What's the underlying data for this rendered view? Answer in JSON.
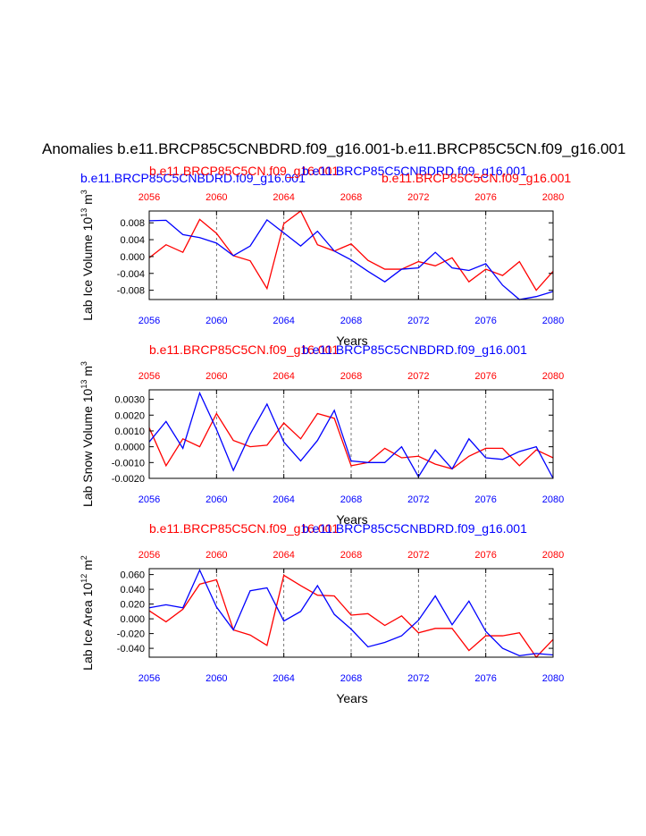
{
  "figure": {
    "main_title": "Anomalies b.e11.BRCP85C5CNBDRD.f09_g16.001-b.e11.BRCP85C5CN.f09_g16.001",
    "colors": {
      "red": "#ff0000",
      "blue": "#0000ff",
      "axis": "#000000",
      "grid": "#555555"
    }
  },
  "chart_data": [
    {
      "type": "line",
      "ylabel": "Lab Ice Volume 10",
      "ylabel_exp": "13",
      "ylabel_unit": "m",
      "ylabel_unit_exp": "3",
      "xlabel": "Years",
      "xlim": [
        2056,
        2080
      ],
      "ylim": [
        -0.0102,
        0.0108
      ],
      "yticks": [
        -0.008,
        -0.004,
        0.0,
        0.004,
        0.008
      ],
      "ytick_labels": [
        "-0.008",
        "-0.004",
        "0.000",
        "0.004",
        "0.008"
      ],
      "xticks": [
        2056,
        2060,
        2064,
        2068,
        2072,
        2076,
        2080
      ],
      "xtick_labels": [
        "2056",
        "2060",
        "2064",
        "2068",
        "2072",
        "2076",
        "2080"
      ],
      "top_labels": [
        {
          "text": "b.e11.BRCP85C5CNBDRD.f09_g16.001",
          "color": "blue",
          "slot": "left-low"
        },
        {
          "text": "b.e11.BRCP85C5CN.f09_g16.001",
          "color": "red",
          "slot": "center-left"
        },
        {
          "text": "b.e11.BRCP85C5CNBDRD.f09_g16.001",
          "color": "blue",
          "slot": "center-right"
        },
        {
          "text": "b.e11.BRCP85C5CN.f09_g16.001",
          "color": "red",
          "slot": "right-low"
        }
      ],
      "series": [
        {
          "name": "b.e11.BRCP85C5CN.f09_g16.001",
          "color": "red",
          "x": [
            2056,
            2057,
            2058,
            2059,
            2060,
            2061,
            2062,
            2063,
            2064,
            2065,
            2066,
            2067,
            2068,
            2069,
            2070,
            2071,
            2072,
            2073,
            2074,
            2075,
            2076,
            2077,
            2078,
            2079,
            2080
          ],
          "values": [
            -0.0003,
            0.0028,
            0.001,
            0.0088,
            0.0055,
            0.0002,
            -0.001,
            -0.0076,
            0.0078,
            0.0108,
            0.0028,
            0.0013,
            0.003,
            -0.0009,
            -0.003,
            -0.003,
            -0.0012,
            -0.0022,
            -0.0003,
            -0.006,
            -0.003,
            -0.0045,
            -0.0012,
            -0.008,
            -0.0035
          ]
        },
        {
          "name": "b.e11.BRCP85C5CNBDRD.f09_g16.001",
          "color": "blue",
          "x": [
            2056,
            2057,
            2058,
            2059,
            2060,
            2061,
            2062,
            2063,
            2064,
            2065,
            2066,
            2067,
            2068,
            2069,
            2070,
            2071,
            2072,
            2073,
            2074,
            2075,
            2076,
            2077,
            2078,
            2079,
            2080
          ],
          "values": [
            0.0085,
            0.0086,
            0.0052,
            0.0045,
            0.0032,
            0.0002,
            0.0025,
            0.0087,
            0.0056,
            0.0025,
            0.006,
            0.0013,
            -0.0008,
            -0.0035,
            -0.006,
            -0.003,
            -0.0027,
            0.001,
            -0.0027,
            -0.0033,
            -0.0017,
            -0.0068,
            -0.0102,
            -0.0095,
            -0.0083
          ]
        }
      ]
    },
    {
      "type": "line",
      "ylabel": "Lab Snow Volume 10",
      "ylabel_exp": "13",
      "ylabel_unit": "m",
      "ylabel_unit_exp": "3",
      "xlabel": "Years",
      "xlim": [
        2056,
        2080
      ],
      "ylim": [
        -0.002,
        0.0036
      ],
      "yticks": [
        -0.002,
        -0.001,
        0.0,
        0.001,
        0.002,
        0.003
      ],
      "ytick_labels": [
        "-0.0020",
        "-0.0010",
        "0.0000",
        "0.0010",
        "0.0020",
        "0.0030"
      ],
      "xticks": [
        2056,
        2060,
        2064,
        2068,
        2072,
        2076,
        2080
      ],
      "xtick_labels": [
        "2056",
        "2060",
        "2064",
        "2068",
        "2072",
        "2076",
        "2080"
      ],
      "top_labels": [
        {
          "text": "b.e11.BRCP85C5CN.f09_g16.001",
          "color": "red",
          "slot": "center-left"
        },
        {
          "text": "b.e11.BRCP85C5CNBDRD.f09_g16.001",
          "color": "blue",
          "slot": "center-right"
        }
      ],
      "series": [
        {
          "name": "b.e11.BRCP85C5CN.f09_g16.001",
          "color": "red",
          "x": [
            2056,
            2057,
            2058,
            2059,
            2060,
            2061,
            2062,
            2063,
            2064,
            2065,
            2066,
            2067,
            2068,
            2069,
            2070,
            2071,
            2072,
            2073,
            2074,
            2075,
            2076,
            2077,
            2078,
            2079,
            2080
          ],
          "values": [
            0.0012,
            -0.0012,
            0.0005,
            0.0,
            0.0021,
            0.0004,
            0.0,
            0.0001,
            0.0015,
            0.0005,
            0.0021,
            0.0018,
            -0.0012,
            -0.001,
            -0.0001,
            -0.0007,
            -0.0006,
            -0.0011,
            -0.0014,
            -0.0006,
            -0.0001,
            -0.0001,
            -0.0012,
            -0.0002,
            -0.0007
          ]
        },
        {
          "name": "b.e11.BRCP85C5CNBDRD.f09_g16.001",
          "color": "blue",
          "x": [
            2056,
            2057,
            2058,
            2059,
            2060,
            2061,
            2062,
            2063,
            2064,
            2065,
            2066,
            2067,
            2068,
            2069,
            2070,
            2071,
            2072,
            2073,
            2074,
            2075,
            2076,
            2077,
            2078,
            2079,
            2080
          ],
          "values": [
            0.0003,
            0.0016,
            -0.0001,
            0.0034,
            0.0011,
            -0.0015,
            0.0008,
            0.0027,
            0.0003,
            -0.0009,
            0.0004,
            0.0023,
            -0.0009,
            -0.001,
            -0.001,
            0.0,
            -0.0019,
            -0.0002,
            -0.0014,
            0.0005,
            -0.0007,
            -0.0008,
            -0.0003,
            0.0,
            -0.002
          ]
        }
      ]
    },
    {
      "type": "line",
      "ylabel": "Lab Ice Area 10",
      "ylabel_exp": "12",
      "ylabel_unit": "m",
      "ylabel_unit_exp": "2",
      "xlabel": "Years",
      "xlim": [
        2056,
        2080
      ],
      "ylim": [
        -0.052,
        0.068
      ],
      "yticks": [
        -0.04,
        -0.02,
        0.0,
        0.02,
        0.04,
        0.06
      ],
      "ytick_labels": [
        "-0.040",
        "-0.020",
        "0.000",
        "0.020",
        "0.040",
        "0.060"
      ],
      "xticks": [
        2056,
        2060,
        2064,
        2068,
        2072,
        2076,
        2080
      ],
      "xtick_labels": [
        "2056",
        "2060",
        "2064",
        "2068",
        "2072",
        "2076",
        "2080"
      ],
      "top_labels": [
        {
          "text": "b.e11.BRCP85C5CN.f09_g16.001",
          "color": "red",
          "slot": "center-left"
        },
        {
          "text": "b.e11.BRCP85C5CNBDRD.f09_g16.001",
          "color": "blue",
          "slot": "center-right"
        }
      ],
      "series": [
        {
          "name": "b.e11.BRCP85C5CN.f09_g16.001",
          "color": "red",
          "x": [
            2056,
            2057,
            2058,
            2059,
            2060,
            2061,
            2062,
            2063,
            2064,
            2065,
            2066,
            2067,
            2068,
            2069,
            2070,
            2071,
            2072,
            2073,
            2074,
            2075,
            2076,
            2077,
            2078,
            2079,
            2080
          ],
          "values": [
            0.011,
            -0.004,
            0.013,
            0.047,
            0.053,
            -0.015,
            -0.022,
            -0.036,
            0.059,
            0.045,
            0.032,
            0.031,
            0.005,
            0.007,
            -0.009,
            0.004,
            -0.019,
            -0.013,
            -0.013,
            -0.043,
            -0.023,
            -0.023,
            -0.019,
            -0.052,
            -0.028
          ]
        },
        {
          "name": "b.e11.BRCP85C5CNBDRD.f09_g16.001",
          "color": "blue",
          "x": [
            2056,
            2057,
            2058,
            2059,
            2060,
            2061,
            2062,
            2063,
            2064,
            2065,
            2066,
            2067,
            2068,
            2069,
            2070,
            2071,
            2072,
            2073,
            2074,
            2075,
            2076,
            2077,
            2078,
            2079,
            2080
          ],
          "values": [
            0.015,
            0.019,
            0.015,
            0.066,
            0.016,
            -0.015,
            0.038,
            0.042,
            -0.003,
            0.01,
            0.045,
            0.006,
            -0.014,
            -0.038,
            -0.032,
            -0.023,
            -0.002,
            0.031,
            -0.008,
            0.024,
            -0.017,
            -0.04,
            -0.05,
            -0.047,
            -0.049
          ]
        }
      ]
    }
  ]
}
